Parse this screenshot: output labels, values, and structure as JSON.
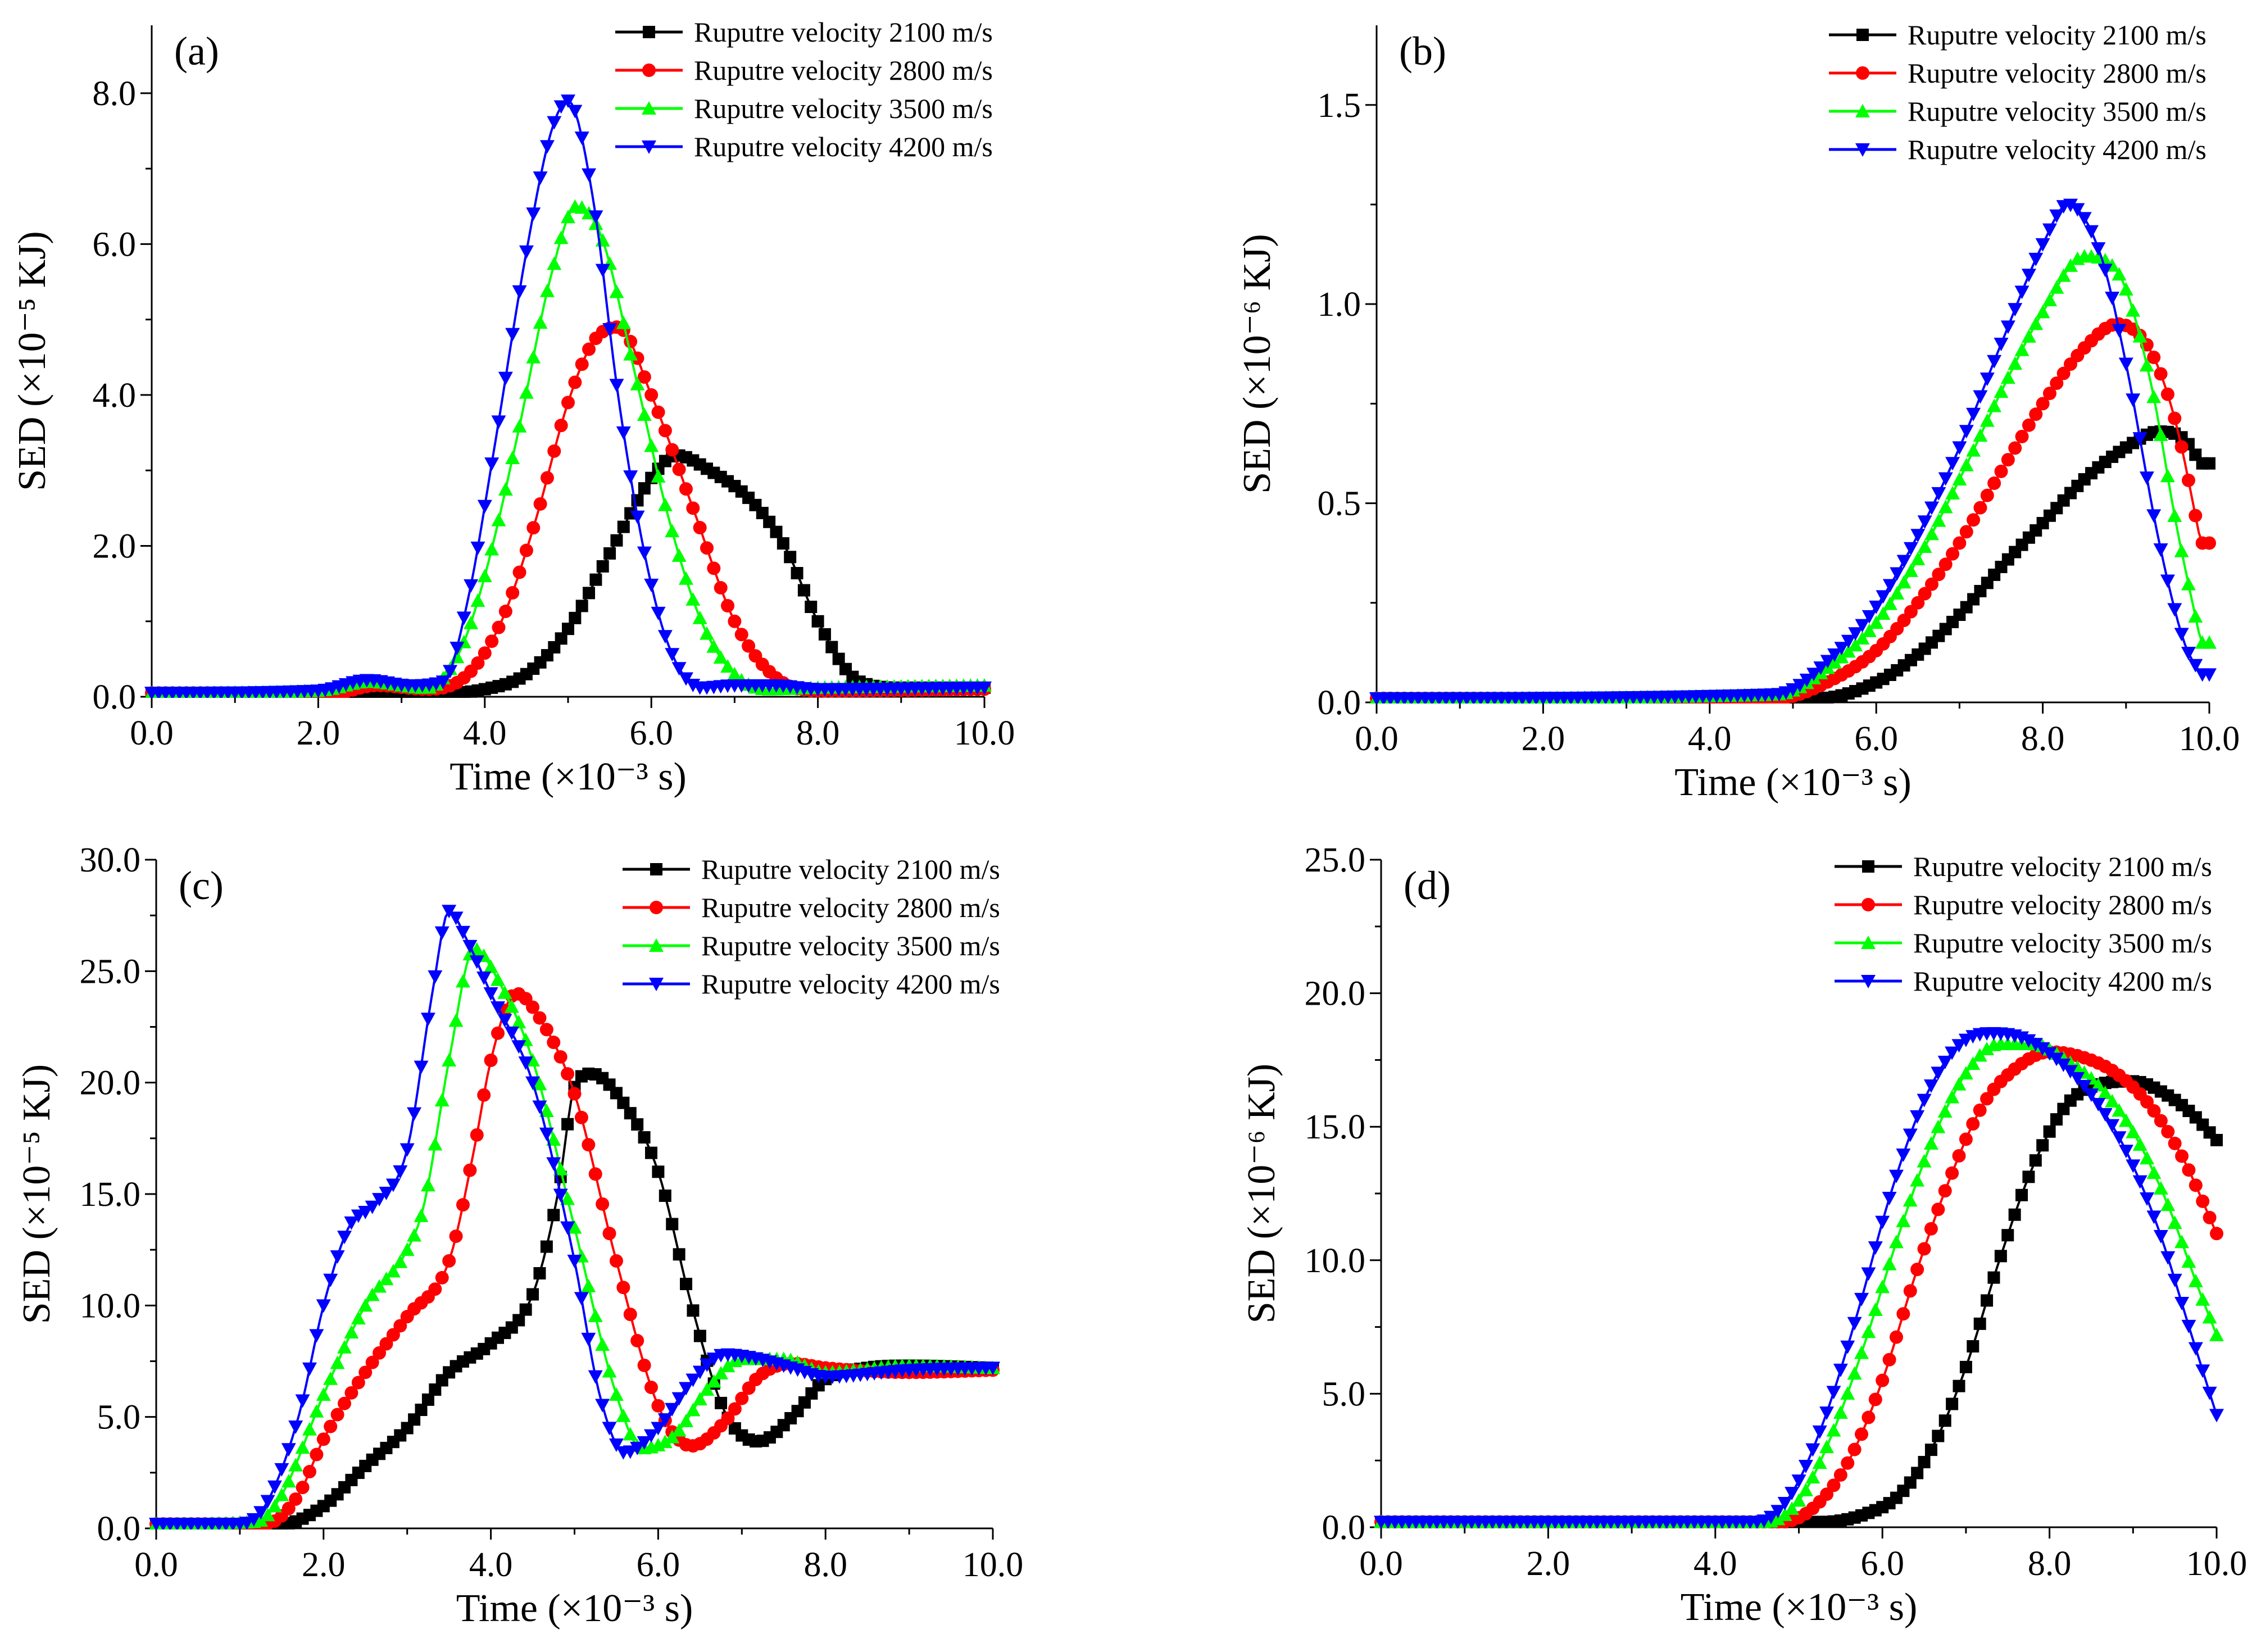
{
  "colors": {
    "series": [
      "#000000",
      "#ff0000",
      "#00ff00",
      "#0000ff"
    ],
    "axis": "#000000",
    "background": "#ffffff"
  },
  "chart_data": [
    {
      "panel": "(a)",
      "type": "line",
      "xlabel": "Time (×10⁻³ s)",
      "ylabel": "SED (×10⁻⁵ KJ)",
      "xlim": [
        0,
        10
      ],
      "ylim": [
        0,
        8.9
      ],
      "xticks": [
        "0.0",
        "2.0",
        "4.0",
        "6.0",
        "8.0",
        "10.0"
      ],
      "yticks": [
        "0.0",
        "2.0",
        "4.0",
        "6.0",
        "8.0"
      ],
      "legend_position": "top-right",
      "series": [
        {
          "name": "Ruputre velocity 2100 m/s",
          "marker": "square",
          "x": [
            0,
            2,
            3.5,
            4.0,
            4.5,
            5.0,
            5.5,
            6.0,
            6.3,
            6.7,
            7.2,
            7.6,
            8.0,
            8.5,
            9.0,
            10.0
          ],
          "y": [
            0.05,
            0.05,
            0.05,
            0.1,
            0.3,
            0.9,
            1.9,
            2.9,
            3.2,
            3.0,
            2.6,
            2.0,
            1.0,
            0.2,
            0.12,
            0.12
          ]
        },
        {
          "name": "Ruputre velocity 2800 m/s",
          "marker": "circle",
          "x": [
            0,
            2.2,
            2.7,
            3.3,
            3.8,
            4.2,
            4.6,
            5.0,
            5.3,
            5.6,
            6.0,
            6.5,
            7.0,
            7.5,
            8.0,
            10.0
          ],
          "y": [
            0.05,
            0.05,
            0.15,
            0.1,
            0.3,
            1.0,
            2.3,
            3.9,
            4.7,
            4.9,
            4.0,
            2.5,
            1.0,
            0.25,
            0.08,
            0.1
          ]
        },
        {
          "name": "Ruputre velocity 3500 m/s",
          "marker": "triangle-up",
          "x": [
            0,
            2.0,
            2.6,
            3.3,
            3.7,
            4.0,
            4.4,
            4.8,
            5.1,
            5.4,
            5.8,
            6.2,
            6.6,
            7.0,
            7.4,
            8.0,
            10.0
          ],
          "y": [
            0.05,
            0.08,
            0.2,
            0.12,
            0.6,
            1.6,
            3.5,
            5.6,
            6.5,
            6.1,
            4.3,
            2.4,
            1.0,
            0.3,
            0.1,
            0.12,
            0.15
          ]
        },
        {
          "name": "Ruputre velocity 4200 m/s",
          "marker": "triangle-down",
          "x": [
            0,
            2.0,
            2.6,
            3.1,
            3.5,
            3.8,
            4.1,
            4.5,
            4.8,
            5.0,
            5.3,
            5.6,
            5.9,
            6.2,
            6.6,
            7.0,
            7.5,
            8.0,
            10.0
          ],
          "y": [
            0.05,
            0.08,
            0.22,
            0.15,
            0.2,
            1.3,
            3.2,
            5.9,
            7.5,
            7.9,
            6.6,
            4.0,
            2.0,
            0.7,
            0.12,
            0.15,
            0.15,
            0.1,
            0.12
          ]
        }
      ]
    },
    {
      "panel": "(b)",
      "type": "line",
      "xlabel": "Time (×10⁻³ s)",
      "ylabel": "SED (×10⁻⁶ KJ)",
      "xlim": [
        0,
        10
      ],
      "ylim": [
        0,
        1.7
      ],
      "xticks": [
        "0.0",
        "2.0",
        "4.0",
        "6.0",
        "8.0",
        "10.0"
      ],
      "yticks": [
        "0.0",
        "0.5",
        "1.0",
        "1.5"
      ],
      "legend_position": "top-right",
      "series": [
        {
          "name": "Ruputre velocity 2100 m/s",
          "marker": "square",
          "x": [
            0,
            4.5,
            5.3,
            6.0,
            6.5,
            7.0,
            7.5,
            8.0,
            8.5,
            9.0,
            9.4,
            9.7,
            9.9
          ],
          "y": [
            0.01,
            0.01,
            0.01,
            0.05,
            0.12,
            0.22,
            0.34,
            0.45,
            0.56,
            0.64,
            0.68,
            0.66,
            0.6
          ]
        },
        {
          "name": "Ruputre velocity 2800 m/s",
          "marker": "circle",
          "x": [
            0,
            4.8,
            5.5,
            6.0,
            6.5,
            7.0,
            7.5,
            8.0,
            8.5,
            8.9,
            9.3,
            9.6,
            9.9
          ],
          "y": [
            0.01,
            0.01,
            0.06,
            0.13,
            0.25,
            0.4,
            0.58,
            0.75,
            0.89,
            0.95,
            0.88,
            0.7,
            0.4
          ]
        },
        {
          "name": "Ruputre velocity 3500 m/s",
          "marker": "triangle-up",
          "x": [
            0,
            4.8,
            5.5,
            6.0,
            6.5,
            7.0,
            7.5,
            8.0,
            8.5,
            8.9,
            9.3,
            9.6,
            9.9
          ],
          "y": [
            0.01,
            0.02,
            0.1,
            0.2,
            0.36,
            0.56,
            0.78,
            0.98,
            1.12,
            1.08,
            0.8,
            0.45,
            0.15
          ]
        },
        {
          "name": "Ruputre velocity 4200 m/s",
          "marker": "triangle-down",
          "x": [
            0,
            4.8,
            5.5,
            6.0,
            6.5,
            7.0,
            7.5,
            8.0,
            8.3,
            8.7,
            9.0,
            9.4,
            9.7,
            9.9
          ],
          "y": [
            0.01,
            0.02,
            0.12,
            0.24,
            0.42,
            0.64,
            0.9,
            1.15,
            1.25,
            1.12,
            0.85,
            0.4,
            0.15,
            0.07
          ]
        }
      ]
    },
    {
      "panel": "(c)",
      "type": "line",
      "xlabel": "Time (×10⁻³ s)",
      "ylabel": "SED (×10⁻⁵ KJ)",
      "xlim": [
        0,
        10
      ],
      "ylim": [
        0,
        30
      ],
      "xticks": [
        "0.0",
        "2.0",
        "4.0",
        "6.0",
        "8.0",
        "10.0"
      ],
      "yticks": [
        "0.0",
        "5.0",
        "10.0",
        "15.0",
        "20.0",
        "25.0",
        "30.0"
      ],
      "legend_position": "top-right",
      "series": [
        {
          "name": "Ruputre velocity 2100 m/s",
          "marker": "square",
          "x": [
            0,
            1.5,
            2.0,
            2.5,
            3.0,
            3.5,
            4.0,
            4.5,
            4.8,
            5.0,
            5.2,
            5.6,
            6.0,
            6.4,
            6.8,
            7.2,
            7.6,
            8.0,
            8.5,
            9.0,
            10.0
          ],
          "y": [
            0.2,
            0.2,
            1.0,
            2.8,
            4.5,
            7.0,
            8.3,
            10.5,
            15.0,
            19.8,
            20.4,
            19.0,
            16.0,
            10.0,
            5.2,
            3.9,
            5.0,
            6.7,
            7.2,
            7.3,
            7.2
          ]
        },
        {
          "name": "Ruputre velocity 2800 m/s",
          "marker": "circle",
          "x": [
            0,
            1.3,
            1.7,
            2.0,
            2.5,
            3.0,
            3.5,
            3.8,
            4.0,
            4.3,
            4.6,
            5.0,
            5.5,
            6.0,
            6.4,
            6.8,
            7.2,
            7.6,
            8.0,
            9.0,
            10.0
          ],
          "y": [
            0.2,
            0.2,
            1.5,
            4.0,
            7.0,
            9.5,
            12.0,
            17.0,
            21.0,
            24.0,
            22.8,
            19.5,
            12.0,
            5.5,
            3.7,
            4.8,
            6.8,
            7.4,
            7.2,
            7.0,
            7.1
          ]
        },
        {
          "name": "Ruputre velocity 3500 m/s",
          "marker": "triangle-up",
          "x": [
            0,
            1.2,
            1.5,
            2.0,
            2.5,
            3.0,
            3.2,
            3.5,
            3.8,
            4.1,
            4.5,
            5.0,
            5.5,
            5.8,
            6.2,
            6.6,
            7.0,
            7.5,
            8.0,
            9.0,
            10.0
          ],
          "y": [
            0.2,
            0.3,
            1.5,
            6.0,
            10.0,
            12.5,
            14.5,
            21.0,
            26.0,
            24.5,
            21.0,
            13.5,
            6.0,
            3.6,
            4.2,
            6.3,
            7.6,
            7.6,
            7.0,
            7.3,
            7.2
          ]
        },
        {
          "name": "Ruputre velocity 4200 m/s",
          "marker": "triangle-down",
          "x": [
            0,
            1.0,
            1.3,
            1.7,
            2.0,
            2.3,
            2.6,
            3.0,
            3.3,
            3.5,
            3.7,
            4.0,
            4.5,
            5.0,
            5.3,
            5.6,
            6.0,
            6.4,
            6.8,
            7.2,
            7.6,
            8.0,
            9.0,
            10.0
          ],
          "y": [
            0.2,
            0.2,
            1.0,
            5.0,
            10.0,
            13.5,
            14.5,
            17.0,
            24.0,
            27.7,
            26.5,
            24.0,
            20.0,
            12.0,
            6.0,
            3.4,
            4.5,
            6.6,
            7.8,
            7.6,
            7.2,
            6.8,
            7.1,
            7.2
          ]
        }
      ]
    },
    {
      "panel": "(d)",
      "type": "line",
      "xlabel": "Time (×10⁻³ s)",
      "ylabel": "SED (×10⁻⁶ KJ)",
      "xlim": [
        0,
        10
      ],
      "ylim": [
        0,
        25
      ],
      "xticks": [
        "0.0",
        "2.0",
        "4.0",
        "6.0",
        "8.0",
        "10.0"
      ],
      "yticks": [
        "0.0",
        "5.0",
        "10.0",
        "15.0",
        "20.0",
        "25.0"
      ],
      "legend_position": "top-right",
      "series": [
        {
          "name": "Ruputre velocity 2100 m/s",
          "marker": "square",
          "x": [
            0,
            5.3,
            5.8,
            6.2,
            6.6,
            7.0,
            7.4,
            7.8,
            8.2,
            8.6,
            9.0,
            9.4,
            9.7,
            10.0
          ],
          "y": [
            0.2,
            0.2,
            0.5,
            1.2,
            3.0,
            6.0,
            10.0,
            13.5,
            15.8,
            16.6,
            16.7,
            16.2,
            15.5,
            14.5
          ]
        },
        {
          "name": "Ruputre velocity 2800 m/s",
          "marker": "circle",
          "x": [
            0,
            4.8,
            5.2,
            5.6,
            6.0,
            6.4,
            6.8,
            7.2,
            7.6,
            8.0,
            8.4,
            8.8,
            9.2,
            9.6,
            10.0
          ],
          "y": [
            0.2,
            0.2,
            0.8,
            2.5,
            5.5,
            9.5,
            13.0,
            15.8,
            17.2,
            17.8,
            17.6,
            17.0,
            15.8,
            13.8,
            11.0
          ]
        },
        {
          "name": "Ruputre velocity 3500 m/s",
          "marker": "triangle-up",
          "x": [
            0,
            4.6,
            5.0,
            5.4,
            5.8,
            6.2,
            6.6,
            7.0,
            7.4,
            7.8,
            8.2,
            8.6,
            9.0,
            9.4,
            9.8,
            10.0
          ],
          "y": [
            0.2,
            0.2,
            1.0,
            3.5,
            7.0,
            11.0,
            14.5,
            17.0,
            18.1,
            18.1,
            17.5,
            16.5,
            14.8,
            12.2,
            8.8,
            7.2
          ]
        },
        {
          "name": "Ruputre velocity 4200 m/s",
          "marker": "triangle-down",
          "x": [
            0,
            4.5,
            4.9,
            5.3,
            5.7,
            6.1,
            6.5,
            6.9,
            7.3,
            7.7,
            8.1,
            8.5,
            8.9,
            9.3,
            9.7,
            10.0
          ],
          "y": [
            0.2,
            0.2,
            1.2,
            4.0,
            8.0,
            12.5,
            16.0,
            18.0,
            18.5,
            18.3,
            17.5,
            16.2,
            14.2,
            11.2,
            7.2,
            4.2
          ]
        }
      ]
    }
  ]
}
